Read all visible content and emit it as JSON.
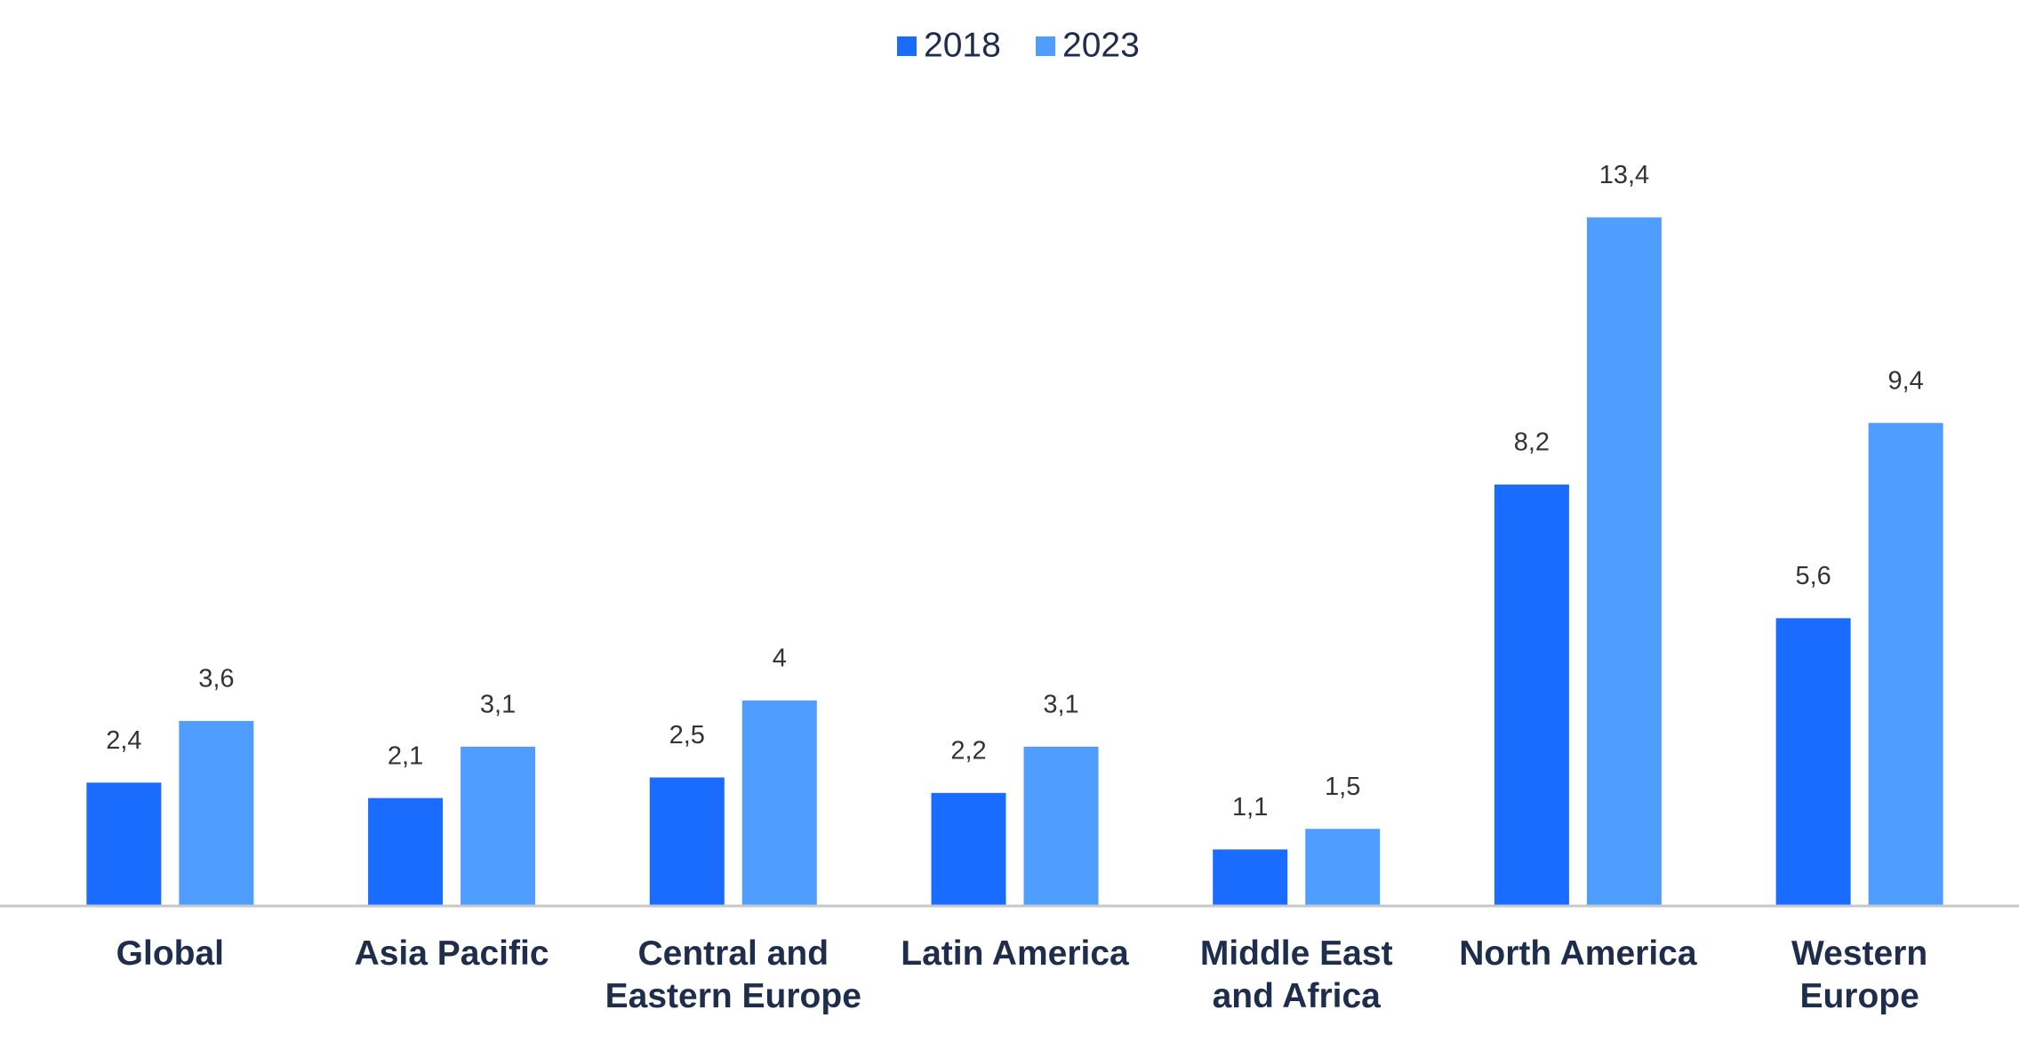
{
  "chart_data": {
    "type": "bar",
    "categories": [
      "Global",
      "Asia Pacific",
      "Central and\nEastern Europe",
      "Latin America",
      "Middle East\nand Africa",
      "North America",
      "Western\nEurope"
    ],
    "series": [
      {
        "name": "2018",
        "color": "#1a6bff",
        "values": [
          2.4,
          2.1,
          2.5,
          2.2,
          1.1,
          8.2,
          5.6
        ],
        "value_labels": [
          "2,4",
          "2,1",
          "2,5",
          "2,2",
          "1,1",
          "8,2",
          "5,6"
        ]
      },
      {
        "name": "2023",
        "color": "#4f9eff",
        "values": [
          3.6,
          3.1,
          4,
          3.1,
          1.5,
          13.4,
          9.4
        ],
        "value_labels": [
          "3,6",
          "3,1",
          "4",
          "3,1",
          "1,5",
          "13,4",
          "9,4"
        ]
      }
    ],
    "ylim": [
      0,
      15
    ],
    "legend": "top"
  }
}
